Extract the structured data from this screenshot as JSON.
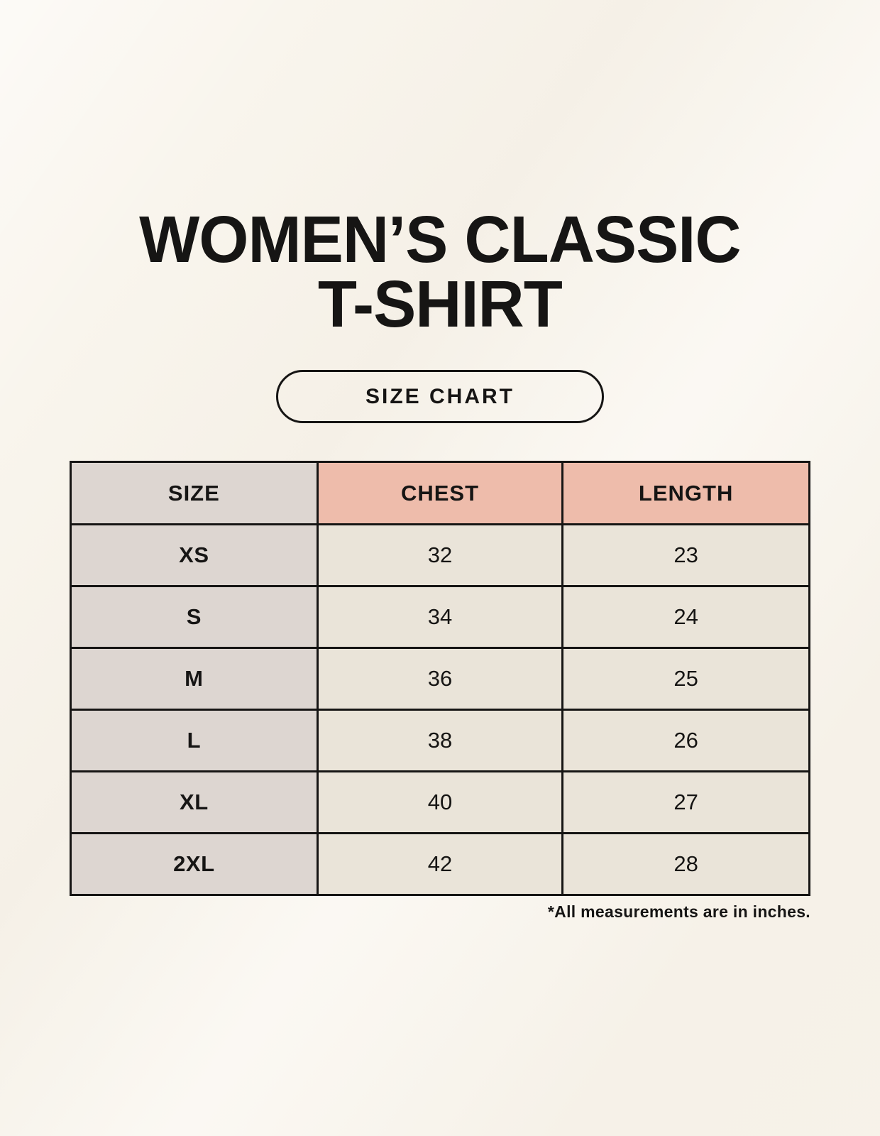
{
  "page": {
    "title_line1": "WOMEN’S CLASSIC",
    "title_line2": "T-SHIRT",
    "button_label": "SIZE CHART",
    "footnote": "*All measurements are in inches."
  },
  "colors": {
    "background": "#f9f5ed",
    "header_accent_salmon": "#eebcab",
    "size_column_gray": "#ddd6d1",
    "data_cell_cream": "#eae4d9",
    "border_and_text": "#161514"
  },
  "chart_data": {
    "type": "table",
    "title": "WOMEN’S CLASSIC T-SHIRT",
    "subtitle": "SIZE CHART",
    "columns": [
      "SIZE",
      "CHEST",
      "LENGTH"
    ],
    "rows": [
      [
        "XS",
        "32",
        "23"
      ],
      [
        "S",
        "34",
        "24"
      ],
      [
        "M",
        "36",
        "25"
      ],
      [
        "L",
        "38",
        "26"
      ],
      [
        "XL",
        "40",
        "27"
      ],
      [
        "2XL",
        "42",
        "28"
      ]
    ],
    "units": "inches",
    "footnote": "*All measurements are in inches."
  }
}
